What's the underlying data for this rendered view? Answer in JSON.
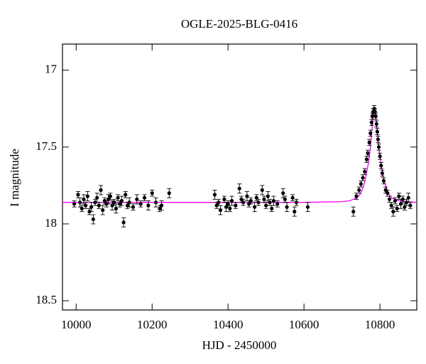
{
  "chart_data": {
    "type": "scatter",
    "title": "OGLE-2025-BLG-0416",
    "x_label": "HJD - 2450000",
    "y_label": "I magnitude",
    "xlim": [
      9964,
      10897
    ],
    "ylim": [
      18.56,
      16.83
    ],
    "xticks": [
      10000,
      10200,
      10400,
      10600,
      10800
    ],
    "yticks": [
      17,
      17.5,
      18,
      18.5
    ],
    "points": {
      "color": "#000000",
      "x": [
        9995,
        10005,
        10010,
        10015,
        10020,
        10025,
        10030,
        10035,
        10040,
        10045,
        10050,
        10055,
        10060,
        10065,
        10070,
        10075,
        10080,
        10085,
        10090,
        10095,
        10100,
        10105,
        10110,
        10115,
        10120,
        10125,
        10130,
        10135,
        10140,
        10150,
        10160,
        10170,
        10180,
        10190,
        10200,
        10210,
        10220,
        10225,
        10245,
        10365,
        10370,
        10375,
        10380,
        10390,
        10395,
        10400,
        10405,
        10410,
        10420,
        10430,
        10435,
        10440,
        10450,
        10455,
        10460,
        10470,
        10475,
        10480,
        10490,
        10495,
        10500,
        10505,
        10510,
        10515,
        10520,
        10530,
        10545,
        10550,
        10555,
        10570,
        10575,
        10580,
        10610,
        10730,
        10738,
        10745,
        10750,
        10755,
        10760,
        10765,
        10768,
        10772,
        10775,
        10778,
        10780,
        10782,
        10785,
        10787,
        10789,
        10791,
        10793,
        10795,
        10797,
        10800,
        10803,
        10806,
        10810,
        10815,
        10820,
        10825,
        10830,
        10835,
        10840,
        10845,
        10850,
        10855,
        10860,
        10865,
        10870,
        10875,
        10880
      ],
      "values": [
        17.87,
        17.81,
        17.86,
        17.9,
        17.84,
        17.88,
        17.82,
        17.92,
        17.89,
        17.97,
        17.86,
        17.83,
        17.88,
        17.78,
        17.91,
        17.85,
        17.87,
        17.84,
        17.82,
        17.88,
        17.86,
        17.9,
        17.83,
        17.87,
        17.85,
        17.99,
        17.81,
        17.88,
        17.86,
        17.89,
        17.84,
        17.87,
        17.83,
        17.88,
        17.8,
        17.86,
        17.9,
        17.88,
        17.8,
        17.81,
        17.88,
        17.86,
        17.91,
        17.84,
        17.89,
        17.87,
        17.9,
        17.85,
        17.88,
        17.77,
        17.84,
        17.86,
        17.82,
        17.87,
        17.85,
        17.89,
        17.83,
        17.86,
        17.78,
        17.84,
        17.88,
        17.82,
        17.86,
        17.9,
        17.85,
        17.87,
        17.8,
        17.84,
        17.89,
        17.83,
        17.92,
        17.86,
        17.89,
        17.92,
        17.82,
        17.78,
        17.74,
        17.7,
        17.66,
        17.58,
        17.54,
        17.47,
        17.41,
        17.34,
        17.3,
        17.27,
        17.25,
        17.27,
        17.3,
        17.35,
        17.4,
        17.45,
        17.5,
        17.56,
        17.62,
        17.67,
        17.72,
        17.78,
        17.8,
        17.84,
        17.88,
        17.92,
        17.85,
        17.9,
        17.82,
        17.87,
        17.84,
        17.89,
        17.86,
        17.83,
        17.88
      ],
      "errors": [
        0.02,
        0.02,
        0.03,
        0.02,
        0.03,
        0.02,
        0.03,
        0.02,
        0.03,
        0.03,
        0.02,
        0.03,
        0.02,
        0.03,
        0.03,
        0.02,
        0.02,
        0.03,
        0.02,
        0.03,
        0.02,
        0.03,
        0.02,
        0.02,
        0.03,
        0.03,
        0.02,
        0.02,
        0.03,
        0.02,
        0.03,
        0.02,
        0.02,
        0.03,
        0.02,
        0.03,
        0.02,
        0.03,
        0.03,
        0.03,
        0.02,
        0.02,
        0.03,
        0.02,
        0.03,
        0.02,
        0.02,
        0.03,
        0.02,
        0.03,
        0.02,
        0.02,
        0.03,
        0.02,
        0.02,
        0.03,
        0.02,
        0.02,
        0.03,
        0.02,
        0.02,
        0.03,
        0.02,
        0.02,
        0.03,
        0.02,
        0.03,
        0.02,
        0.03,
        0.02,
        0.03,
        0.02,
        0.03,
        0.03,
        0.02,
        0.02,
        0.02,
        0.02,
        0.02,
        0.02,
        0.02,
        0.02,
        0.02,
        0.02,
        0.02,
        0.02,
        0.02,
        0.02,
        0.02,
        0.02,
        0.02,
        0.02,
        0.02,
        0.02,
        0.02,
        0.02,
        0.02,
        0.02,
        0.02,
        0.02,
        0.02,
        0.03,
        0.02,
        0.02,
        0.02,
        0.03,
        0.02,
        0.02,
        0.02,
        0.03,
        0.02
      ]
    },
    "model": {
      "color": "#ff00ff",
      "x": [
        9964,
        10600,
        10700,
        10720,
        10740,
        10750,
        10760,
        10770,
        10775,
        10780,
        10785,
        10790,
        10795,
        10800,
        10810,
        10820,
        10830,
        10850,
        10870,
        10897
      ],
      "values": [
        17.86,
        17.86,
        17.855,
        17.85,
        17.83,
        17.8,
        17.73,
        17.6,
        17.5,
        17.36,
        17.25,
        17.33,
        17.45,
        17.56,
        17.71,
        17.79,
        17.83,
        17.85,
        17.855,
        17.86
      ]
    }
  }
}
